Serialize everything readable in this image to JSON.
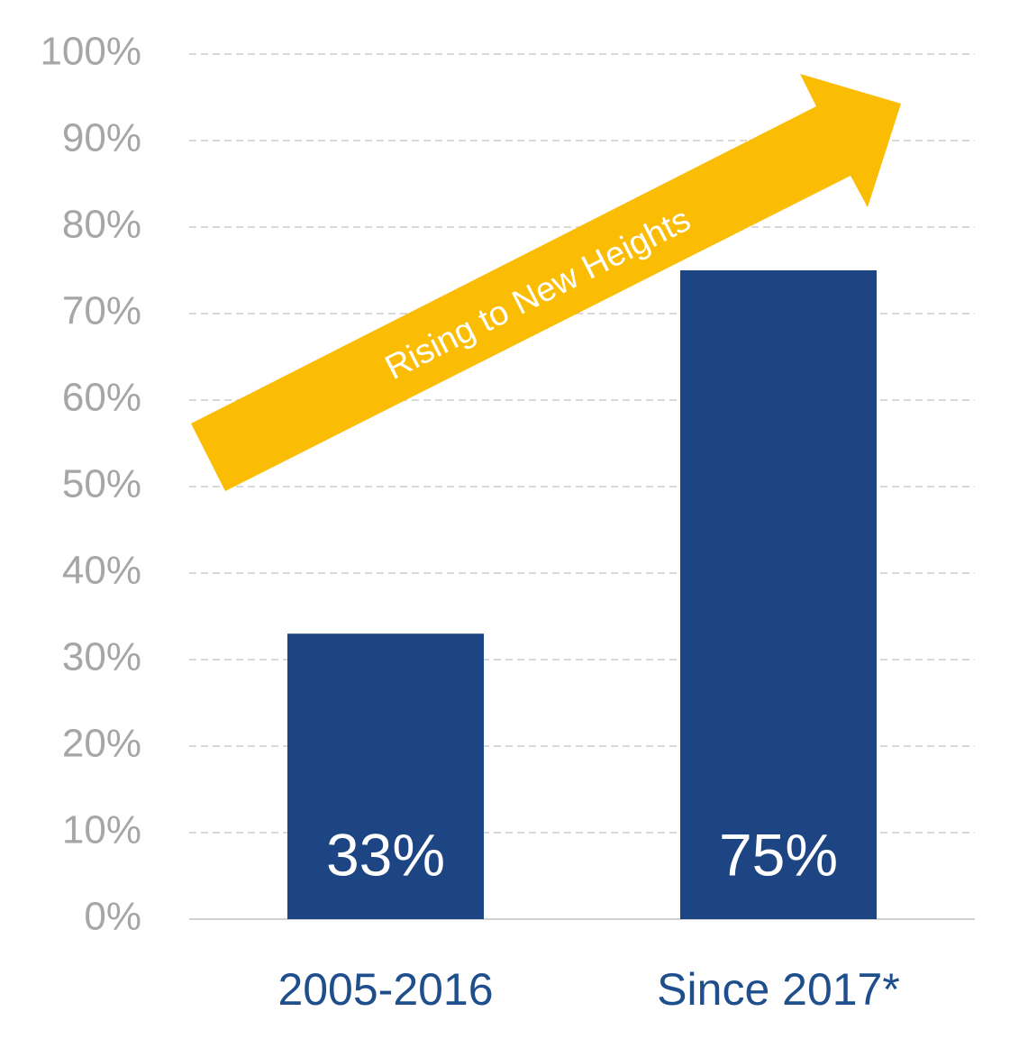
{
  "chart_data": {
    "type": "bar",
    "categories": [
      "2005-2016",
      "Since 2017*"
    ],
    "values": [
      33,
      75
    ],
    "value_labels": [
      "33%",
      "75%"
    ],
    "color": "#1d4483",
    "ylim": [
      0,
      100
    ],
    "yticks": [
      {
        "value": 0,
        "label": "0%"
      },
      {
        "value": 10,
        "label": "10%"
      },
      {
        "value": 20,
        "label": "20%"
      },
      {
        "value": 30,
        "label": "30%"
      },
      {
        "value": 40,
        "label": "40%"
      },
      {
        "value": 50,
        "label": "50%"
      },
      {
        "value": 60,
        "label": "60%"
      },
      {
        "value": 70,
        "label": "70%"
      },
      {
        "value": 80,
        "label": "80%"
      },
      {
        "value": 90,
        "label": "90%"
      },
      {
        "value": 100,
        "label": "100%"
      }
    ],
    "grid": true,
    "annotation": "Rising to New Heights"
  }
}
